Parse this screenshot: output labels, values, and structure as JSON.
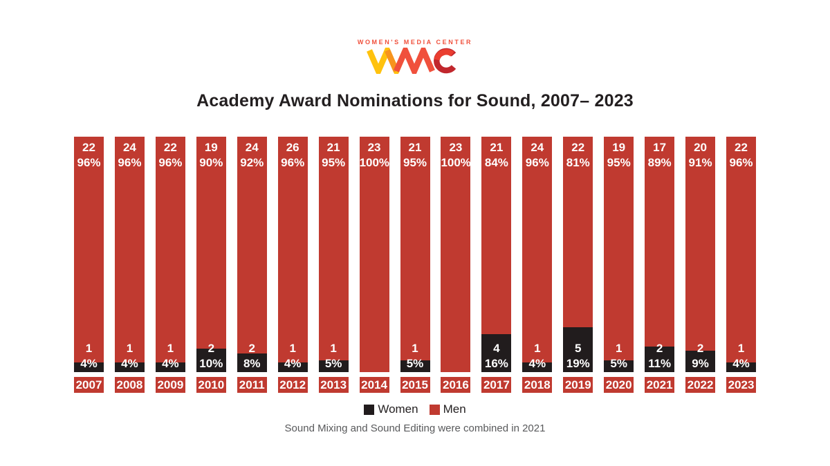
{
  "logo": {
    "tagline": "WOMEN'S MEDIA CENTER",
    "name": "WMC"
  },
  "title": "Academy Award Nominations for Sound, 2007– 2023",
  "legend": {
    "women": "Women",
    "men": "Men"
  },
  "footnote": "Sound Mixing and Sound Editing were combined in 2021",
  "colors": {
    "men": "#C03A30",
    "women": "#211C1D",
    "bar_label_text": "#FFFFFF",
    "title_text": "#231F20",
    "footnote_text": "#58595B",
    "logo_tagline": "#F0503C",
    "logo_yellow": "#FFC20E",
    "logo_orange": "#F7941D",
    "logo_red": "#F0503C",
    "logo_dark_red": "#C1272D"
  },
  "chart_data": {
    "type": "bar",
    "stacked": true,
    "title": "Academy Award Nominations for Sound, 2007– 2023",
    "xlabel": "",
    "ylabel": "",
    "ylim": [
      0,
      100
    ],
    "grid": false,
    "legend_position": "bottom",
    "categories": [
      "2007",
      "2008",
      "2009",
      "2010",
      "2011",
      "2012",
      "2013",
      "2014",
      "2015",
      "2016",
      "2017",
      "2018",
      "2019",
      "2020",
      "2021",
      "2022",
      "2023"
    ],
    "series": [
      {
        "name": "Women",
        "color": "#211C1D",
        "values": [
          1,
          1,
          1,
          2,
          2,
          1,
          1,
          0,
          1,
          0,
          4,
          1,
          5,
          1,
          2,
          2,
          1
        ],
        "pct": [
          4,
          4,
          4,
          10,
          8,
          4,
          5,
          0,
          5,
          0,
          16,
          4,
          19,
          5,
          11,
          9,
          4
        ]
      },
      {
        "name": "Men",
        "color": "#C03A30",
        "values": [
          22,
          24,
          22,
          19,
          24,
          26,
          21,
          23,
          21,
          23,
          21,
          24,
          22,
          19,
          17,
          20,
          22
        ],
        "pct": [
          96,
          96,
          96,
          90,
          92,
          96,
          95,
          100,
          95,
          100,
          84,
          96,
          81,
          95,
          89,
          91,
          96
        ]
      }
    ],
    "annotation": "Sound Mixing and Sound Editing were combined in 2021"
  }
}
